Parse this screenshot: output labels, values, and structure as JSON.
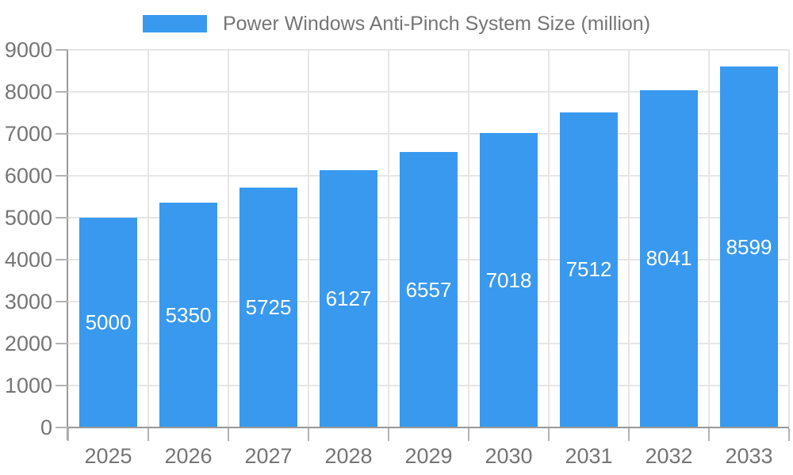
{
  "legend": {
    "label": "Power Windows Anti-Pinch System Size (million)"
  },
  "chart_data": {
    "type": "bar",
    "title": "Power Windows Anti-Pinch System Size (million)",
    "categories": [
      "2025",
      "2026",
      "2027",
      "2028",
      "2029",
      "2030",
      "2031",
      "2032",
      "2033"
    ],
    "values": [
      5000,
      5350,
      5725,
      6127,
      6557,
      7018,
      7512,
      8041,
      8599
    ],
    "xlabel": "",
    "ylabel": "",
    "ylim": [
      0,
      9000
    ],
    "ytick_step": 1000,
    "ytick_labels": [
      "0",
      "1000",
      "2000",
      "3000",
      "4000",
      "5000",
      "6000",
      "7000",
      "8000",
      "9000"
    ],
    "grid": true,
    "legend_position": "top",
    "value_labels": "inside-center",
    "colors": {
      "bar": "#3999ee",
      "value_label": "#ffffff",
      "axis_text": "#757575",
      "axis_line": "#999999",
      "tick": "#b3b3b3",
      "grid": "#e6e6e6",
      "background": "#ffffff"
    }
  }
}
